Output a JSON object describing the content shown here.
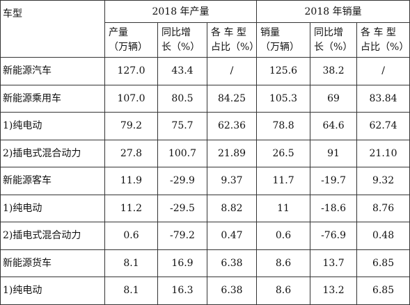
{
  "table": {
    "header": {
      "category": "车型",
      "production_group": "2018 年产量",
      "sales_group": "2018 年销量",
      "production_cols": [
        {
          "line1": "产量",
          "line2": "（万辆）"
        },
        {
          "line1": "同比增",
          "line2": "长（%）"
        },
        {
          "line1": "各 车 型",
          "line2": "占比（%）"
        }
      ],
      "sales_cols": [
        {
          "line1": "销量",
          "line2": "（万辆）"
        },
        {
          "line1": "同比增",
          "line2": "长（%）"
        },
        {
          "line1": "各 车 型",
          "line2": "占比（%）"
        }
      ]
    },
    "rows": [
      {
        "name": "新能源汽车",
        "values": [
          "127.0",
          "43.4",
          "/",
          "125.6",
          "38.2",
          "/"
        ]
      },
      {
        "name": "新能源乘用车",
        "values": [
          "107.0",
          "80.5",
          "84.25",
          "105.3",
          "69",
          "83.84"
        ]
      },
      {
        "name": "1)纯电动",
        "values": [
          "79.2",
          "75.7",
          "62.36",
          "78.8",
          "64.6",
          "62.74"
        ]
      },
      {
        "name": "2)插电式混合动力",
        "values": [
          "27.8",
          "100.7",
          "21.89",
          "26.5",
          "91",
          "21.10"
        ]
      },
      {
        "name": "新能源客车",
        "values": [
          "11.9",
          "-29.9",
          "9.37",
          "11.7",
          "-19.7",
          "9.32"
        ]
      },
      {
        "name": "1)纯电动",
        "values": [
          "11.2",
          "-29.5",
          "8.82",
          "11",
          "-18.6",
          "8.76"
        ]
      },
      {
        "name": "2)插电式混合动力",
        "values": [
          "0.6",
          "-79.2",
          "0.47",
          "0.6",
          "-76.9",
          "0.48"
        ]
      },
      {
        "name": "新能源货车",
        "values": [
          "8.1",
          "16.9",
          "6.38",
          "8.6",
          "13.7",
          "6.85"
        ]
      },
      {
        "name": "1)纯电动",
        "values": [
          "8.1",
          "16.3",
          "6.38",
          "8.6",
          "13.2",
          "6.85"
        ]
      }
    ]
  }
}
